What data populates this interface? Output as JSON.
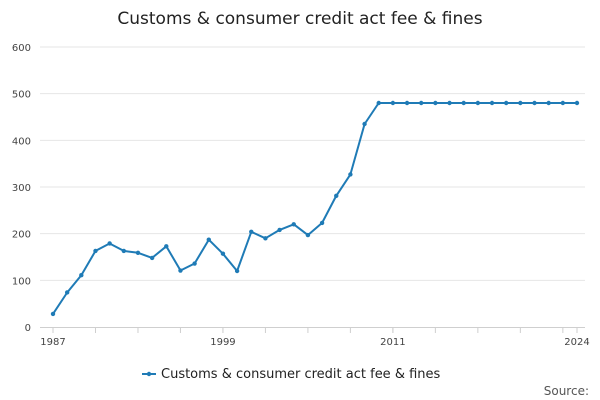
{
  "chart_data": {
    "type": "line",
    "title": "Customs & consumer credit act fee & fines",
    "xlabel": "",
    "ylabel": "",
    "xlim": [
      1987,
      2024
    ],
    "ylim": [
      0,
      600
    ],
    "y_ticks": [
      0,
      100,
      200,
      300,
      400,
      500,
      600
    ],
    "x_tick_labels": [
      "1987",
      "1999",
      "2011",
      "2024"
    ],
    "x_tick_values": [
      1987,
      1999,
      2011,
      2024
    ],
    "grid": "horizontal",
    "legend_position": "bottom",
    "series": [
      {
        "name": "Customs & consumer credit act fee & fines",
        "color": "#1f7bb6",
        "x": [
          1987,
          1988,
          1989,
          1990,
          1991,
          1992,
          1993,
          1994,
          1995,
          1996,
          1997,
          1998,
          1999,
          2000,
          2001,
          2002,
          2003,
          2004,
          2005,
          2006,
          2007,
          2008,
          2009,
          2010,
          2011,
          2012,
          2013,
          2014,
          2015,
          2016,
          2017,
          2018,
          2019,
          2020,
          2021,
          2022,
          2023,
          2024
        ],
        "values": [
          28,
          74,
          111,
          163,
          179,
          163,
          159,
          148,
          173,
          121,
          136,
          187,
          157,
          120,
          204,
          190,
          208,
          220,
          197,
          223,
          281,
          327,
          435,
          480,
          480,
          480,
          480,
          480,
          480,
          480,
          480,
          480,
          480,
          480,
          480,
          480,
          480,
          480
        ]
      }
    ]
  },
  "footer": {
    "source_label": "Source:"
  }
}
